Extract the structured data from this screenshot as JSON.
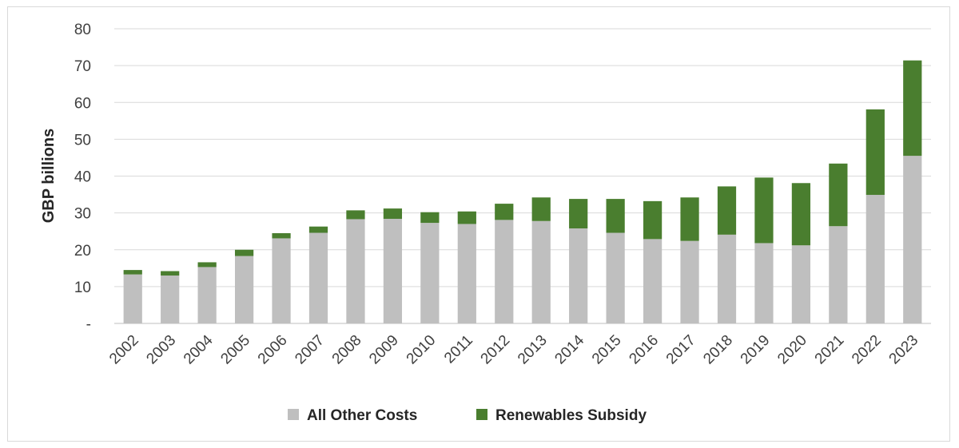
{
  "chart_data": {
    "type": "bar",
    "stacked": true,
    "categories": [
      "2002",
      "2003",
      "2004",
      "2005",
      "2006",
      "2007",
      "2008",
      "2009",
      "2010",
      "2011",
      "2012",
      "2013",
      "2014",
      "2015",
      "2016",
      "2017",
      "2018",
      "2019",
      "2020",
      "2021",
      "2022",
      "2023"
    ],
    "series": [
      {
        "name": "All Other Costs",
        "color": "#bfbfbf",
        "values": [
          13.3,
          13.0,
          15.3,
          18.3,
          23.1,
          24.6,
          28.3,
          28.4,
          27.3,
          27.0,
          28.1,
          27.8,
          25.8,
          24.6,
          22.9,
          22.4,
          24.1,
          21.8,
          21.2,
          26.4,
          34.9,
          45.5
        ]
      },
      {
        "name": "Renewables Subsidy",
        "color": "#4a7e2f",
        "values": [
          1.2,
          1.2,
          1.3,
          1.7,
          1.4,
          1.7,
          2.4,
          2.8,
          2.9,
          3.4,
          4.4,
          6.4,
          8.0,
          9.2,
          10.3,
          11.8,
          13.1,
          17.8,
          16.9,
          17.0,
          23.2,
          25.9
        ]
      }
    ],
    "ylabel": "GBP billions",
    "ylim": [
      0,
      80
    ],
    "yticks": [
      {
        "value": 0,
        "label": "-"
      },
      {
        "value": 10,
        "label": "10"
      },
      {
        "value": 20,
        "label": "20"
      },
      {
        "value": 30,
        "label": "30"
      },
      {
        "value": 40,
        "label": "40"
      },
      {
        "value": 50,
        "label": "50"
      },
      {
        "value": 60,
        "label": "60"
      },
      {
        "value": 70,
        "label": "70"
      },
      {
        "value": 80,
        "label": "80"
      }
    ],
    "grid": true,
    "legend": "bottom"
  }
}
